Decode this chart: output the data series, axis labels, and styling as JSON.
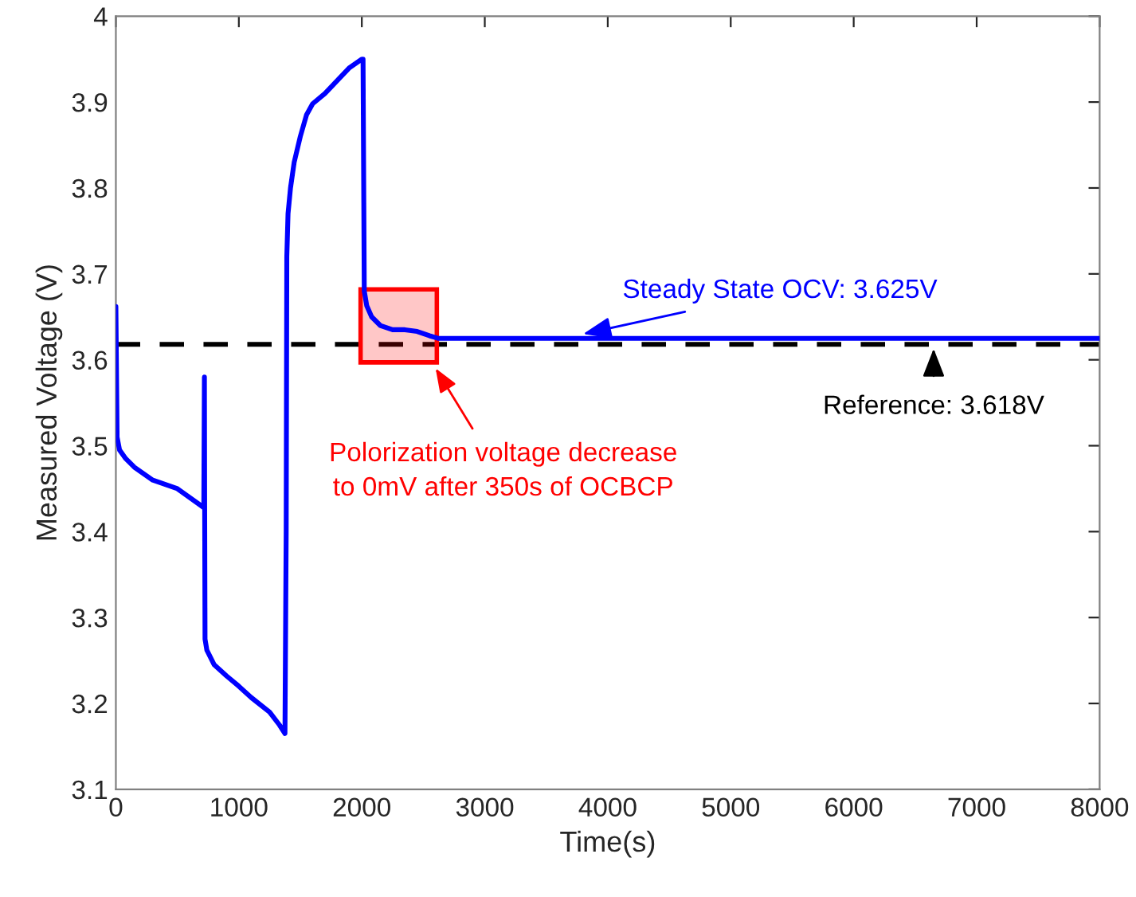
{
  "chart_data": {
    "type": "line",
    "xlabel": "Time(s)",
    "ylabel": "Measured Voltage (V)",
    "series": [
      {
        "color": "#0000ff",
        "x": [
          0,
          10,
          30,
          80,
          150,
          300,
          500,
          715,
          720,
          722,
          725,
          740,
          800,
          900,
          1000,
          1100,
          1250,
          1330,
          1375,
          1385,
          1390,
          1400,
          1420,
          1450,
          1500,
          1550,
          1600,
          1700,
          1800,
          1900,
          2000,
          2010,
          2020,
          2040,
          2080,
          2150,
          2250,
          2350,
          2450,
          2550,
          2620,
          3000,
          4000,
          5000,
          6000,
          7000,
          8000
        ],
        "values": [
          3.662,
          3.51,
          3.495,
          3.485,
          3.475,
          3.46,
          3.45,
          3.428,
          3.58,
          3.43,
          3.275,
          3.262,
          3.245,
          3.232,
          3.22,
          3.207,
          3.19,
          3.175,
          3.165,
          3.4,
          3.72,
          3.77,
          3.8,
          3.83,
          3.86,
          3.885,
          3.898,
          3.91,
          3.925,
          3.94,
          3.95,
          3.95,
          3.68,
          3.663,
          3.65,
          3.64,
          3.635,
          3.635,
          3.633,
          3.628,
          3.625,
          3.625,
          3.625,
          3.625,
          3.625,
          3.625,
          3.625
        ]
      }
    ],
    "xlim": [
      0,
      8000
    ],
    "xticks": [
      0,
      1000,
      2000,
      3000,
      4000,
      5000,
      6000,
      7000,
      8000
    ],
    "ylim": [
      3.1,
      4
    ],
    "yticks": [
      3.1,
      3.2,
      3.3,
      3.4,
      3.5,
      3.6,
      3.7,
      3.8,
      3.9,
      4
    ],
    "ref_lines": [
      {
        "axis": "y",
        "value": 3.618,
        "color": "#000000",
        "line_style": "dashed"
      }
    ],
    "annotations": [
      {
        "text": "Steady State OCV: 3.625V",
        "x": 3800,
        "y": 3.63
      },
      {
        "text": "Reference: 3.618V",
        "x": 6650,
        "y": 3.613
      },
      "Polorization voltage decrease\nto 0mV after 350s of OCBCP"
    ],
    "grid": false,
    "legend": false
  }
}
